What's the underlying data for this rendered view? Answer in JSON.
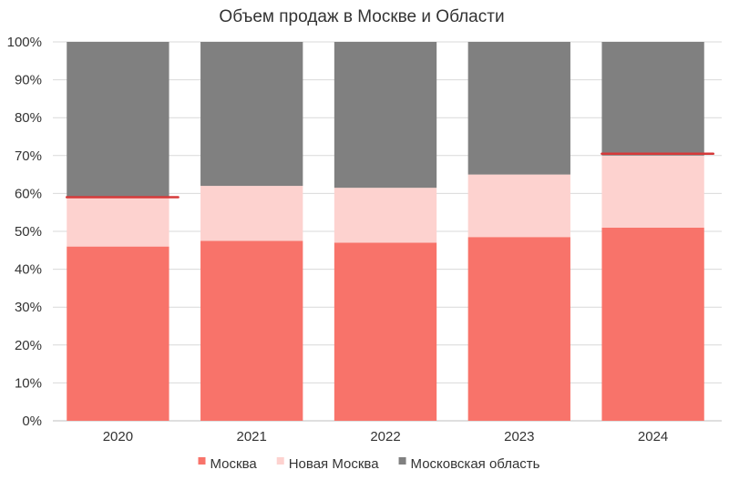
{
  "chart_data": {
    "type": "bar",
    "stacked": true,
    "title": "Объем продаж в Москве и Области",
    "categories": [
      "2020",
      "2021",
      "2022",
      "2023",
      "2024"
    ],
    "series": [
      {
        "name": "Москва",
        "color": "#f8736a",
        "values": [
          46,
          47.5,
          47,
          48.5,
          51
        ]
      },
      {
        "name": "Новая Москва",
        "color": "#fdd2cf",
        "values": [
          13,
          14.5,
          14.5,
          16.5,
          19
        ]
      },
      {
        "name": "Московская область",
        "color": "#808080",
        "values": [
          41,
          38,
          38.5,
          35,
          30
        ]
      }
    ],
    "ylim": [
      0,
      100
    ],
    "yticks": [
      "0%",
      "10%",
      "20%",
      "30%",
      "40%",
      "50%",
      "60%",
      "70%",
      "80%",
      "90%",
      "100%"
    ],
    "grid": true,
    "legend_position": "bottom",
    "annotations": [
      {
        "type": "line",
        "color": "#d63a3a",
        "category": "2020",
        "y": 59
      },
      {
        "type": "line",
        "color": "#d63a3a",
        "category": "2024",
        "y": 70.5
      }
    ]
  }
}
